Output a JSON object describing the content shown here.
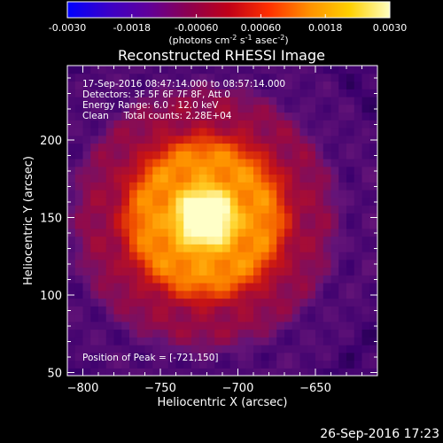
{
  "chart_data": {
    "type": "heatmap",
    "title": "Reconstructed RHESSI Image",
    "xlabel": "Heliocentric X (arcsec)",
    "ylabel": "Heliocentric Y (arcsec)",
    "xlim": [
      -810,
      -610
    ],
    "ylim": [
      48,
      248
    ],
    "x_ticks": [
      -800,
      -750,
      -700,
      -650
    ],
    "y_ticks": [
      50,
      100,
      150,
      200
    ],
    "colorbar": {
      "range": [
        -0.003,
        0.003
      ],
      "ticks": [
        "-0.0030",
        "-0.0018",
        "-0.00060",
        "0.00060",
        "0.0018",
        "0.0030"
      ],
      "unit_label": "(photons cm",
      "unit_parts": [
        "(photons cm",
        "-2",
        " s",
        "-1",
        " asec",
        "-2",
        ")"
      ],
      "colors": [
        "#0000ff",
        "#3a00c8",
        "#60009a",
        "#8c0050",
        "#c00018",
        "#ff3000",
        "#ff9000",
        "#ffd000",
        "#ffffc0"
      ]
    },
    "info_lines": [
      "17-Sep-2016 08:47:14.000 to 08:57:14.000",
      "Detectors: 3F 5F 6F 7F 8F, Att 0",
      "Energy Range: 6.0 - 12.0 keV",
      "Clean     Total counts: 2.28E+04"
    ],
    "peak_label": "Position of Peak = [-721,150]",
    "peak": [
      -721,
      150
    ],
    "grid": false
  },
  "footer": {
    "timestamp": "26-Sep-2016 17:23"
  }
}
